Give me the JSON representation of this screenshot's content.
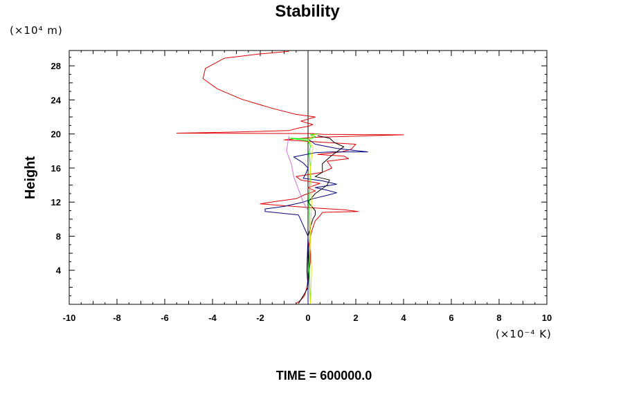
{
  "chart_data": {
    "type": "line",
    "title": "Stability",
    "ylabel": "Height",
    "y_unit": "(×10⁴ m)",
    "x_unit": "(×10⁻⁴ K)",
    "footer": "TIME = 600000.0",
    "xlim": [
      -10,
      10
    ],
    "ylim": [
      0,
      29.8
    ],
    "x_ticks": [
      -10,
      -8,
      -6,
      -4,
      -2,
      0,
      2,
      4,
      6,
      8,
      10
    ],
    "y_ticks": [
      4,
      8,
      12,
      16,
      20,
      24,
      28
    ],
    "grid": false,
    "colors": {
      "red": "#e00000",
      "navy": "#000080",
      "black": "#000000",
      "green": "#00ff00",
      "magenta": "#d070d0",
      "yellow": "#e8e800"
    },
    "series": [
      {
        "color": "red",
        "x": [
          -0.5,
          -0.3,
          -0.15,
          -0.05,
          0,
          0.05,
          0.1,
          0.1,
          0.05,
          0.1,
          0.2,
          0.3,
          0.5,
          0.6,
          2.1,
          1.5,
          0.3,
          -2.0,
          -1.3,
          -0.5,
          -0.2,
          0.3,
          0.0,
          0.5,
          -0.3,
          -0.5,
          0.6,
          1.0,
          0.9,
          0.8,
          1.7,
          1.5,
          0.4,
          1.4,
          1.8,
          2.0,
          -1.0,
          0.2,
          4.0,
          0.6,
          0.2,
          -5.5,
          -3.5,
          -0.8,
          -0.4,
          0,
          0.2,
          -0.3,
          0.3,
          -0.5,
          -1.5,
          -2.8,
          -3.8,
          -4.4,
          -4.3,
          -3.5,
          -2.0,
          -0.8
        ],
        "y": [
          0.1,
          0.5,
          1.0,
          2.0,
          3.0,
          4.0,
          5.0,
          6.0,
          7.0,
          8.0,
          9.0,
          9.8,
          10.4,
          10.8,
          10.9,
          11.1,
          11.3,
          11.8,
          12.1,
          12.4,
          12.8,
          13.3,
          13.7,
          14.2,
          14.6,
          15.0,
          15.5,
          16.0,
          16.4,
          16.8,
          17.1,
          17.4,
          17.6,
          17.9,
          18.2,
          18.8,
          19.3,
          19.6,
          19.9,
          19.95,
          20.05,
          20.1,
          20.2,
          20.4,
          20.7,
          20.9,
          21.1,
          21.5,
          22.0,
          22.3,
          23.0,
          24.1,
          25.3,
          26.5,
          27.7,
          28.9,
          29.4,
          29.7
        ]
      },
      {
        "color": "navy",
        "x": [
          0,
          0,
          -0.05,
          0,
          -0.4,
          -1.8,
          -1.8,
          -1.0,
          -0.2,
          0.2,
          0.8,
          1.2,
          0.8,
          0.3,
          1.2,
          0.6,
          -0.2,
          -0.1,
          0,
          -0.2,
          -0.6,
          0.3,
          1.0,
          2.5,
          1.2,
          0.3,
          0
        ],
        "y": [
          0.1,
          2.0,
          4.0,
          8.0,
          10.5,
          10.9,
          11.2,
          11.5,
          12.0,
          12.4,
          12.8,
          13.1,
          13.4,
          13.7,
          14.1,
          14.5,
          14.8,
          15.3,
          16.0,
          16.6,
          17.3,
          17.8,
          17.9,
          17.9,
          18.3,
          18.8,
          19.4
        ]
      },
      {
        "color": "black",
        "x": [
          -0.4,
          -0.2,
          0,
          0.05,
          0,
          0.2,
          0.3,
          0.3,
          0,
          0.3,
          0.8,
          0.9,
          0.3,
          0.6,
          0.6,
          1.0,
          1.5,
          1.1,
          0.9,
          0.4
        ],
        "y": [
          0.1,
          1.0,
          2.0,
          4.0,
          8.0,
          10.0,
          10.5,
          11.0,
          12.0,
          13.0,
          14.0,
          14.6,
          15.0,
          15.5,
          16.5,
          17.5,
          18.5,
          19.0,
          19.5,
          19.8
        ]
      },
      {
        "color": "green",
        "x": [
          0.1,
          0.05,
          0.08,
          0.05,
          0.1,
          0.05,
          0.1,
          0.0,
          -0.8,
          0.1,
          0.3,
          0.1,
          0.4
        ],
        "y": [
          0.1,
          4.0,
          8.0,
          12.0,
          16.0,
          17.8,
          18.6,
          19.2,
          19.5,
          19.4,
          19.7,
          19.9,
          20.0
        ]
      },
      {
        "color": "magenta",
        "x": [
          0,
          -0.2,
          -0.4,
          -0.6,
          -0.7,
          -0.9,
          -0.8
        ],
        "y": [
          11.0,
          12.0,
          13.5,
          15.0,
          16.5,
          18.0,
          19.8
        ]
      },
      {
        "color": "yellow",
        "x": [
          0.1,
          0.15,
          0.1,
          0.15,
          0.1,
          0.2,
          0.0,
          0.3
        ],
        "y": [
          0.1,
          4.0,
          8.0,
          12.0,
          16.0,
          18.5,
          19.3,
          20.0
        ]
      }
    ]
  }
}
